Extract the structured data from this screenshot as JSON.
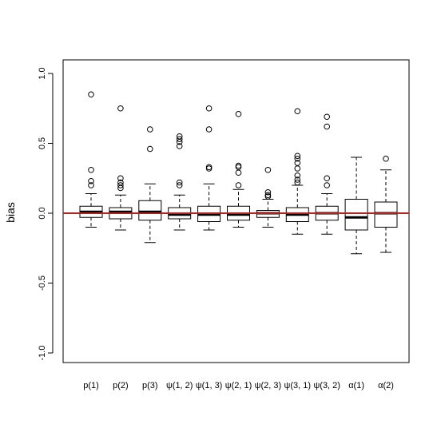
{
  "chart_data": {
    "type": "boxplot",
    "title": "",
    "xlabel": "",
    "ylabel": "bias",
    "ylim": [
      -1.0,
      1.0
    ],
    "yticks": [
      {
        "value": -1.0,
        "label": "-1.0"
      },
      {
        "value": -0.5,
        "label": "-0.5"
      },
      {
        "value": 0.0,
        "label": "0.0"
      },
      {
        "value": 0.5,
        "label": "0.5"
      },
      {
        "value": 1.0,
        "label": "1.0"
      }
    ],
    "reference_line": {
      "y": 0.0,
      "color": "#b22222"
    },
    "grid": false,
    "categories": [
      "p(1)",
      "p(2)",
      "p(3)",
      "ψ(1, 2)",
      "ψ(1, 3)",
      "ψ(2, 1)",
      "ψ(2, 3)",
      "ψ(3, 1)",
      "ψ(3, 2)",
      "α(1)",
      "α(2)"
    ],
    "boxes": [
      {
        "whisker_low": -0.1,
        "q1": -0.03,
        "median": 0.01,
        "q3": 0.05,
        "whisker_high": 0.14,
        "outliers": [
          0.2,
          0.23,
          0.31,
          0.85
        ]
      },
      {
        "whisker_low": -0.12,
        "q1": -0.04,
        "median": 0.01,
        "q3": 0.04,
        "whisker_high": 0.13,
        "outliers": [
          0.18,
          0.2,
          0.22,
          0.25,
          0.75
        ]
      },
      {
        "whisker_low": -0.21,
        "q1": -0.05,
        "median": 0.01,
        "q3": 0.09,
        "whisker_high": 0.21,
        "outliers": [
          0.46,
          0.6
        ]
      },
      {
        "whisker_low": -0.12,
        "q1": -0.04,
        "median": -0.01,
        "q3": 0.04,
        "whisker_high": 0.13,
        "outliers": [
          0.2,
          0.22,
          0.48,
          0.51,
          0.53,
          0.55
        ]
      },
      {
        "whisker_low": -0.12,
        "q1": -0.06,
        "median": -0.01,
        "q3": 0.05,
        "whisker_high": 0.21,
        "outliers": [
          0.32,
          0.33,
          0.6,
          0.75
        ]
      },
      {
        "whisker_low": -0.1,
        "q1": -0.05,
        "median": -0.01,
        "q3": 0.05,
        "whisker_high": 0.17,
        "outliers": [
          0.2,
          0.29,
          0.33,
          0.34,
          0.71
        ]
      },
      {
        "whisker_low": -0.1,
        "q1": -0.03,
        "median": 0.0,
        "q3": 0.02,
        "whisker_high": 0.1,
        "outliers": [
          0.12,
          0.13,
          0.15,
          0.31
        ]
      },
      {
        "whisker_low": -0.15,
        "q1": -0.06,
        "median": -0.01,
        "q3": 0.04,
        "whisker_high": 0.2,
        "outliers": [
          0.22,
          0.24,
          0.27,
          0.32,
          0.36,
          0.39,
          0.41,
          0.73
        ]
      },
      {
        "whisker_low": -0.15,
        "q1": -0.05,
        "median": 0.0,
        "q3": 0.05,
        "whisker_high": 0.14,
        "outliers": [
          0.2,
          0.25,
          0.62,
          0.69
        ]
      },
      {
        "whisker_low": -0.29,
        "q1": -0.12,
        "median": -0.03,
        "q3": 0.1,
        "whisker_high": 0.4,
        "outliers": []
      },
      {
        "whisker_low": -0.28,
        "q1": -0.1,
        "median": 0.0,
        "q3": 0.08,
        "whisker_high": 0.31,
        "outliers": [
          0.39
        ]
      }
    ]
  }
}
